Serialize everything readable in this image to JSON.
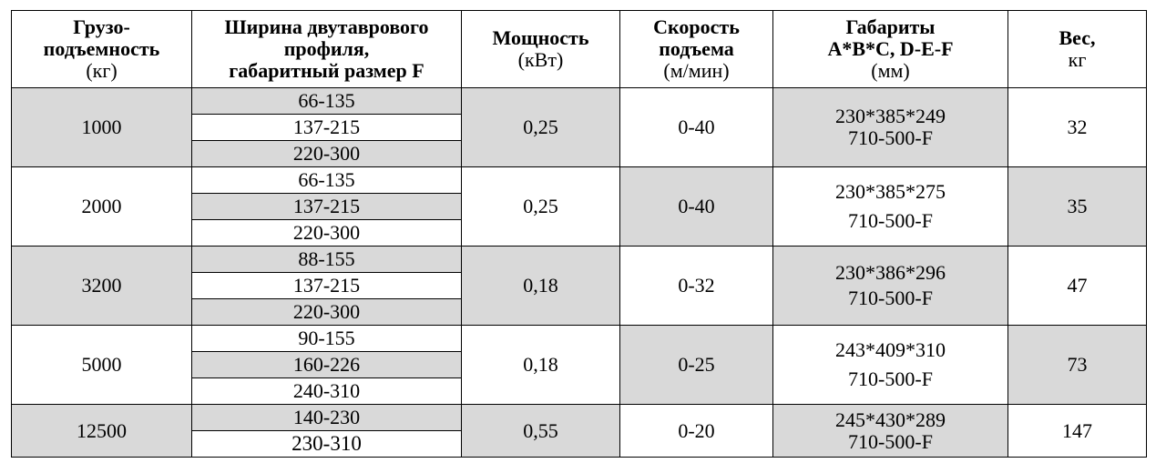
{
  "header": {
    "capacity": [
      "Грузо-",
      "подъемность",
      "(кг)"
    ],
    "profile": [
      "Ширина двутаврового",
      "профиля,",
      "габаритный  размер F"
    ],
    "power": [
      "Мощность",
      "(кВт)"
    ],
    "speed": [
      "Скорость",
      "подъема",
      "(м/мин)"
    ],
    "dims": [
      "Габариты",
      "A*B*C,   D-E-F",
      "(мм)"
    ],
    "weight": [
      "Вес,",
      "кг"
    ]
  },
  "rows": [
    {
      "capacity": "1000",
      "profiles": [
        "66-135",
        "137-215",
        "220-300"
      ],
      "power": "0,25",
      "speed": "0-40",
      "dims": [
        "230*385*249",
        "710-500-F"
      ],
      "weight": "32"
    },
    {
      "capacity": "2000",
      "profiles": [
        "66-135",
        "137-215",
        "220-300"
      ],
      "power": "0,25",
      "speed": "0-40",
      "dims": [
        "230*385*275",
        "710-500-F"
      ],
      "weight": "35"
    },
    {
      "capacity": "3200",
      "profiles": [
        "88-155",
        "137-215",
        "220-300"
      ],
      "power": "0,18",
      "speed": "0-32",
      "dims": [
        "230*386*296",
        "710-500-F"
      ],
      "weight": "47"
    },
    {
      "capacity": "5000",
      "profiles": [
        "90-155",
        "160-226",
        "240-310"
      ],
      "power": "0,18",
      "speed": "0-25",
      "dims": [
        "243*409*310",
        "710-500-F"
      ],
      "weight": "73"
    },
    {
      "capacity": "12500",
      "profiles": [
        "140-230",
        "230-310"
      ],
      "power": "0,55",
      "speed": "0-20",
      "dims": [
        "245*430*289",
        "710-500-F"
      ],
      "weight": "147"
    }
  ],
  "colors": {
    "shade": "#d9d9d9",
    "white": "#ffffff",
    "border": "#000000"
  }
}
